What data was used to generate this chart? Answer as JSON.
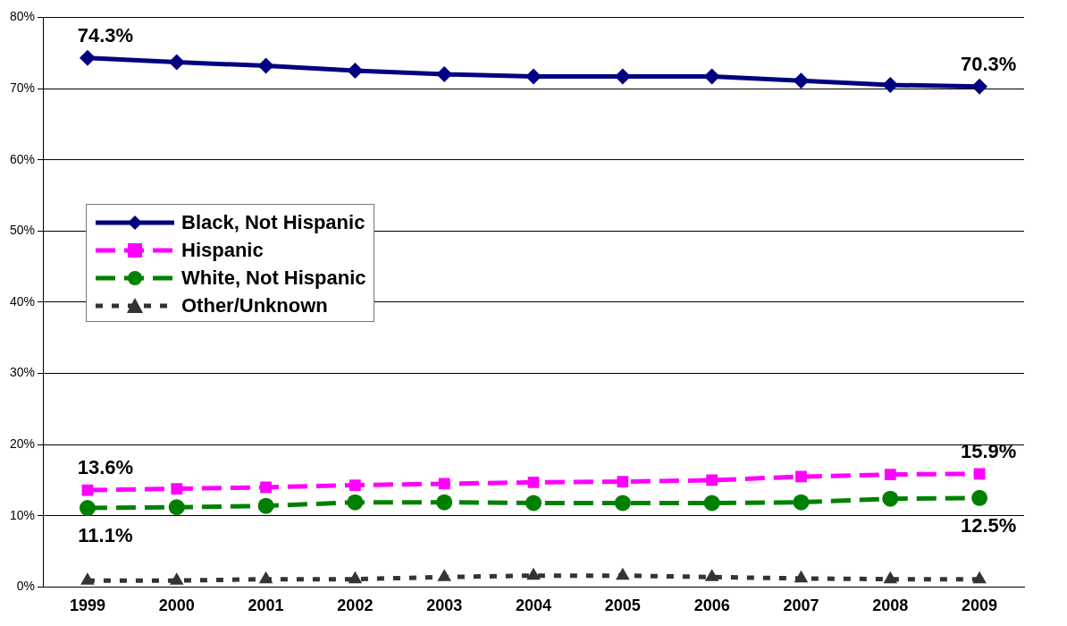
{
  "chart_data": {
    "type": "line",
    "categories": [
      "1999",
      "2000",
      "2001",
      "2002",
      "2003",
      "2004",
      "2005",
      "2006",
      "2007",
      "2008",
      "2009"
    ],
    "ylim": [
      0,
      80
    ],
    "yticks": [
      {
        "value": 0,
        "label": "0%"
      },
      {
        "value": 10,
        "label": "10%"
      },
      {
        "value": 20,
        "label": "20%"
      },
      {
        "value": 30,
        "label": "30%"
      },
      {
        "value": 40,
        "label": "40%"
      },
      {
        "value": 50,
        "label": "50%"
      },
      {
        "value": 60,
        "label": "60%"
      },
      {
        "value": 70,
        "label": "70%"
      },
      {
        "value": 80,
        "label": "80%"
      }
    ],
    "grid": "y",
    "legend": "left",
    "series": [
      {
        "name": "Black, Not Hispanic",
        "color": "#000080",
        "marker": "diamond",
        "line_style": "solid",
        "values": [
          74.3,
          73.7,
          73.2,
          72.5,
          72.0,
          71.7,
          71.7,
          71.7,
          71.1,
          70.5,
          70.3
        ],
        "value_labels": [
          "74.3%",
          null,
          null,
          null,
          null,
          null,
          null,
          null,
          null,
          null,
          "70.3%"
        ]
      },
      {
        "name": "Hispanic",
        "color": "#ff00ff",
        "marker": "square",
        "line_style": "dashed",
        "values": [
          13.6,
          13.8,
          14.0,
          14.3,
          14.5,
          14.7,
          14.8,
          15.0,
          15.5,
          15.8,
          15.9
        ],
        "value_labels": [
          "13.6%",
          null,
          null,
          null,
          null,
          null,
          null,
          null,
          null,
          null,
          "15.9%"
        ]
      },
      {
        "name": "White, Not Hispanic",
        "color": "#008000",
        "marker": "circle",
        "line_style": "dashed",
        "values": [
          11.1,
          11.2,
          11.4,
          11.9,
          11.9,
          11.8,
          11.8,
          11.8,
          11.9,
          12.4,
          12.5
        ],
        "value_labels": [
          "11.1%",
          null,
          null,
          null,
          null,
          null,
          null,
          null,
          null,
          null,
          "12.5%"
        ]
      },
      {
        "name": "Other/Unknown",
        "color": "#333333",
        "marker": "triangle",
        "line_style": "dotted",
        "values": [
          0.9,
          0.9,
          1.1,
          1.1,
          1.4,
          1.6,
          1.6,
          1.4,
          1.2,
          1.1,
          1.1
        ]
      }
    ]
  }
}
